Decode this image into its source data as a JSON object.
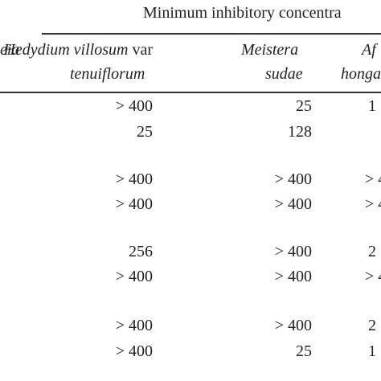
{
  "header": {
    "title": "Minimum inhibitory concentra"
  },
  "columns": [
    {
      "line1": "eia"
    },
    {
      "line1": "Hedydium villosum",
      "line1_suffix": "var",
      "line2": "tenuiflorum"
    },
    {
      "line1": "Meistera",
      "line2": "sudae"
    },
    {
      "line1": "Af",
      "line2": "honga"
    }
  ],
  "table": {
    "rows": [
      [
        "> 400",
        "25",
        "1"
      ],
      [
        "25",
        "128",
        null
      ],
      [
        "> 400",
        "> 400",
        "> 4"
      ],
      [
        "> 400",
        "> 400",
        "> 4"
      ],
      [
        "256",
        "> 400",
        "2"
      ],
      [
        "> 400",
        "> 400",
        "> 4"
      ],
      [
        "> 400",
        "> 400",
        "2"
      ],
      [
        "> 400",
        "25",
        "1"
      ]
    ]
  }
}
